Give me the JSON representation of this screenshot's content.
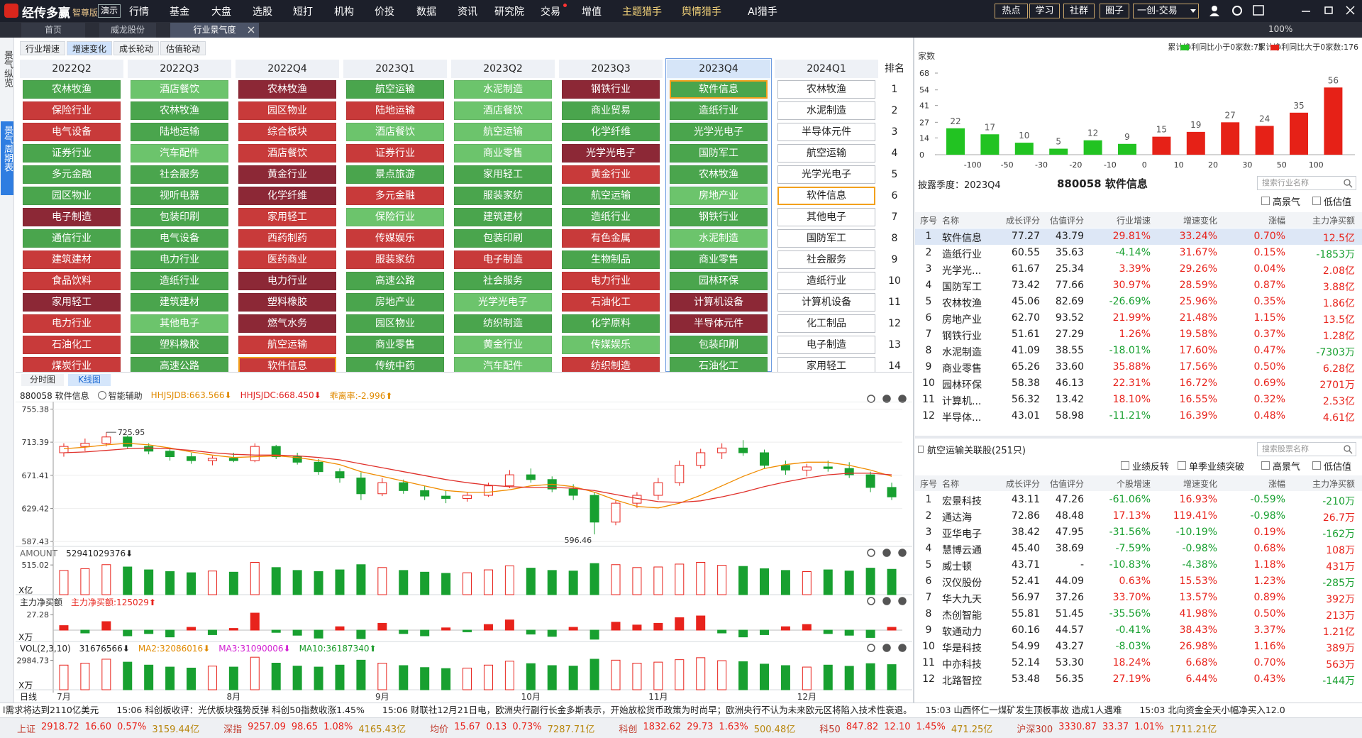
{
  "menu": {
    "logo": "经传多赢",
    "edition": "智尊版",
    "demo": "演示",
    "items": [
      "行情",
      "基金",
      "大盘",
      "选股",
      "短打",
      "机构",
      "价投",
      "数据",
      "资讯",
      "研究院",
      "交易",
      "增值",
      "主题猎手",
      "舆情猎手",
      "AI猎手"
    ],
    "right": [
      "热点",
      "学习",
      "社群",
      "圈子",
      "一创-交易"
    ],
    "zoom": "100%"
  },
  "tabs": [
    "首页",
    "威龙股份",
    "行业景气度"
  ],
  "sidebar": [
    "景气纵览",
    "景气周期表"
  ],
  "subtabs": [
    "行业增速",
    "增速变化",
    "成长轮动",
    "估值轮动"
  ],
  "active_subtab": 1,
  "grid": {
    "rank_label": "排名",
    "selected_column": 6,
    "highlight": "软件信息",
    "ranks": [
      1,
      2,
      3,
      4,
      5,
      6,
      7,
      8,
      9,
      10,
      11,
      12,
      13,
      14
    ],
    "columns": [
      {
        "quarter": "2022Q2",
        "items": [
          "农林牧渔",
          "保险行业",
          "电气设备",
          "证券行业",
          "多元金融",
          "园区物业",
          "电子制造",
          "通信行业",
          "建筑建材",
          "食品饮料",
          "家用轻工",
          "电力行业",
          "石油化工",
          "煤炭行业"
        ],
        "colors": [
          "#4aa54d",
          "#c83a3a",
          "#c83a3a",
          "#4aa54d",
          "#4aa54d",
          "#4aa54d",
          "#8c2836",
          "#4aa54d",
          "#c83a3a",
          "#c83a3a",
          "#8c2836",
          "#c83a3a",
          "#c83a3a",
          "#c83a3a"
        ]
      },
      {
        "quarter": "2022Q3",
        "items": [
          "酒店餐饮",
          "农林牧渔",
          "陆地运输",
          "汽车配件",
          "社会服务",
          "视听电器",
          "包装印刷",
          "电气设备",
          "电力行业",
          "造纸行业",
          "建筑建材",
          "其他电子",
          "塑料橡胶",
          "高速公路"
        ],
        "colors": [
          "#6cc46c",
          "#4aa54d",
          "#4aa54d",
          "#6cc46c",
          "#4aa54d",
          "#4aa54d",
          "#4aa54d",
          "#4aa54d",
          "#4aa54d",
          "#4aa54d",
          "#4aa54d",
          "#6cc46c",
          "#4aa54d",
          "#4aa54d"
        ]
      },
      {
        "quarter": "2022Q4",
        "items": [
          "农林牧渔",
          "园区物业",
          "综合板块",
          "酒店餐饮",
          "黄金行业",
          "化学纤维",
          "家用轻工",
          "西药制药",
          "医药商业",
          "电力行业",
          "塑料橡胶",
          "燃气水务",
          "航空运输",
          "软件信息"
        ],
        "colors": [
          "#8c2836",
          "#c83a3a",
          "#c83a3a",
          "#c83a3a",
          "#8c2836",
          "#8c2836",
          "#c83a3a",
          "#c83a3a",
          "#c83a3a",
          "#8c2836",
          "#8c2836",
          "#8c2836",
          "#c83a3a",
          "#c83a3a"
        ]
      },
      {
        "quarter": "2023Q1",
        "items": [
          "航空运输",
          "陆地运输",
          "酒店餐饮",
          "证券行业",
          "景点旅游",
          "多元金融",
          "保险行业",
          "传媒娱乐",
          "服装家纺",
          "高速公路",
          "房地产业",
          "园区物业",
          "商业零售",
          "传统中药"
        ],
        "colors": [
          "#4aa54d",
          "#c83a3a",
          "#6cc46c",
          "#c83a3a",
          "#4aa54d",
          "#c83a3a",
          "#6cc46c",
          "#c83a3a",
          "#c83a3a",
          "#4aa54d",
          "#4aa54d",
          "#4aa54d",
          "#4aa54d",
          "#4aa54d"
        ]
      },
      {
        "quarter": "2023Q2",
        "items": [
          "水泥制造",
          "酒店餐饮",
          "航空运输",
          "商业零售",
          "家用轻工",
          "服装家纺",
          "建筑建材",
          "包装印刷",
          "电子制造",
          "社会服务",
          "光学光电子",
          "纺织制造",
          "黄金行业",
          "汽车配件"
        ],
        "colors": [
          "#6cc46c",
          "#6cc46c",
          "#6cc46c",
          "#6cc46c",
          "#4aa54d",
          "#4aa54d",
          "#4aa54d",
          "#4aa54d",
          "#c83a3a",
          "#4aa54d",
          "#6cc46c",
          "#4aa54d",
          "#6cc46c",
          "#6cc46c"
        ]
      },
      {
        "quarter": "2023Q3",
        "items": [
          "钢铁行业",
          "商业贸易",
          "化学纤维",
          "光学光电子",
          "黄金行业",
          "航空运输",
          "造纸行业",
          "有色金属",
          "生物制品",
          "电力行业",
          "石油化工",
          "化学原料",
          "传媒娱乐",
          "纺织制造"
        ],
        "colors": [
          "#8c2836",
          "#4aa54d",
          "#4aa54d",
          "#8c2836",
          "#c83a3a",
          "#4aa54d",
          "#4aa54d",
          "#c83a3a",
          "#4aa54d",
          "#c83a3a",
          "#c83a3a",
          "#4aa54d",
          "#6cc46c",
          "#c83a3a"
        ]
      },
      {
        "quarter": "2023Q4",
        "items": [
          "软件信息",
          "造纸行业",
          "光学光电子",
          "国防军工",
          "农林牧渔",
          "房地产业",
          "钢铁行业",
          "水泥制造",
          "商业零售",
          "园林环保",
          "计算机设备",
          "半导体元件",
          "包装印刷",
          "石油化工"
        ],
        "colors": [
          "#4aa54d",
          "#4aa54d",
          "#4aa54d",
          "#4aa54d",
          "#4aa54d",
          "#6cc46c",
          "#4aa54d",
          "#6cc46c",
          "#4aa54d",
          "#4aa54d",
          "#8c2836",
          "#8c2836",
          "#4aa54d",
          "#4aa54d"
        ]
      },
      {
        "quarter": "2024Q1",
        "items": [
          "农林牧渔",
          "水泥制造",
          "半导体元件",
          "航空运输",
          "光学光电子",
          "软件信息",
          "其他电子",
          "国防军工",
          "社会服务",
          "造纸行业",
          "计算机设备",
          "化工制品",
          "电子制造",
          "家用轻工"
        ],
        "colors": [
          "#ffffff",
          "#ffffff",
          "#ffffff",
          "#ffffff",
          "#ffffff",
          "#ffffff",
          "#ffffff",
          "#ffffff",
          "#ffffff",
          "#ffffff",
          "#ffffff",
          "#ffffff",
          "#ffffff",
          "#ffffff"
        ]
      }
    ]
  },
  "kline_tabs": [
    "分时图",
    "K线图"
  ],
  "chart_data": [
    {
      "type": "histogram",
      "ylabel": "家数",
      "bins": [
        null,
        -100,
        -50,
        -30,
        -20,
        -10,
        0,
        10,
        20,
        30,
        50,
        100,
        null
      ],
      "counts": [
        22,
        17,
        10,
        5,
        12,
        9,
        15,
        19,
        27,
        24,
        35,
        56
      ],
      "colors": [
        "#22c322",
        "#22c322",
        "#22c322",
        "#22c322",
        "#22c322",
        "#22c322",
        "#e62117",
        "#e62117",
        "#e62117",
        "#e62117",
        "#e62117",
        "#e62117"
      ],
      "legend": [
        {
          "name": "累计净利同比小于0家数:75",
          "color": "#22c322"
        },
        {
          "name": "累计净利同比大于0家数:176",
          "color": "#e62117"
        }
      ],
      "ylim": [
        0,
        68
      ],
      "yticks": [
        0,
        14,
        27,
        41,
        54,
        68
      ]
    },
    {
      "type": "candlestick",
      "title": "880058 软件信息",
      "assist": "智能辅助",
      "period": "日线",
      "indicators": [
        {
          "name": "HHJSJDB:663.566⬇",
          "color": "#e08a00"
        },
        {
          "name": "HHJSJDC:668.450⬇",
          "color": "#e02020"
        },
        {
          "name": "乖离率:-2.996⬆",
          "color": "#e08a00"
        }
      ],
      "categories": [
        "7月",
        null,
        null,
        null,
        null,
        null,
        null,
        null,
        "8月",
        null,
        null,
        null,
        null,
        null,
        null,
        "9月",
        null,
        null,
        null,
        null,
        null,
        null,
        "10月",
        null,
        null,
        null,
        null,
        null,
        "11月",
        null,
        null,
        null,
        null,
        null,
        null,
        "12月",
        null,
        null,
        null,
        null
      ],
      "open": [
        700,
        708,
        712,
        720,
        708,
        702,
        695,
        690,
        693,
        690,
        708,
        695,
        688,
        676,
        668,
        648,
        662,
        652,
        645,
        642,
        646,
        658,
        672,
        666,
        654,
        646,
        612,
        636,
        646,
        662,
        684,
        700,
        706,
        700,
        684,
        678,
        682,
        680,
        672,
        656
      ],
      "high": [
        712,
        718,
        725.95,
        722,
        712,
        706,
        700,
        696,
        700,
        712,
        710,
        700,
        692,
        680,
        675,
        668,
        666,
        658,
        652,
        650,
        662,
        678,
        680,
        670,
        660,
        650,
        640,
        650,
        668,
        690,
        705,
        712,
        716,
        704,
        690,
        686,
        690,
        688,
        676,
        662
      ],
      "low": [
        695,
        702,
        708,
        705,
        698,
        690,
        686,
        684,
        688,
        688,
        692,
        685,
        672,
        662,
        640,
        645,
        648,
        640,
        636,
        638,
        644,
        655,
        662,
        650,
        640,
        596.46,
        608,
        630,
        640,
        658,
        680,
        692,
        696,
        680,
        672,
        670,
        676,
        668,
        650,
        640
      ],
      "close": [
        708,
        712,
        720,
        708,
        702,
        695,
        690,
        693,
        690,
        708,
        695,
        688,
        676,
        668,
        648,
        662,
        652,
        645,
        642,
        646,
        658,
        672,
        666,
        654,
        646,
        612,
        636,
        646,
        662,
        684,
        700,
        706,
        700,
        684,
        678,
        682,
        680,
        672,
        656,
        644
      ],
      "series": [
        {
          "color": "#f08c00",
          "values": [
            705,
            707,
            710,
            712,
            710,
            706,
            701,
            697,
            694,
            695,
            696,
            694,
            690,
            685,
            676,
            670,
            664,
            658,
            652,
            650,
            650,
            653,
            658,
            660,
            657,
            650,
            640,
            632,
            630,
            636,
            646,
            658,
            670,
            680,
            685,
            688,
            688,
            684,
            678,
            670
          ]
        },
        {
          "color": "#e0312b",
          "values": [
            700,
            701,
            703,
            705,
            706,
            705,
            703,
            700,
            698,
            697,
            697,
            696,
            694,
            691,
            686,
            681,
            676,
            671,
            666,
            662,
            659,
            657,
            656,
            656,
            655,
            652,
            647,
            642,
            638,
            637,
            639,
            644,
            650,
            657,
            663,
            668,
            672,
            674,
            674,
            672
          ]
        }
      ],
      "ylim": [
        583,
        763
      ],
      "yticks": [
        587.43,
        629.42,
        671.41,
        713.39,
        755.38
      ]
    },
    {
      "type": "bar",
      "title": "AMOUNT",
      "readout": "52941029376⬇",
      "unit": "X亿",
      "values": [
        420,
        450,
        520,
        480,
        430,
        400,
        380,
        410,
        390,
        560,
        470,
        420,
        400,
        430,
        520,
        470,
        420,
        390,
        370,
        380,
        430,
        500,
        460,
        420,
        410,
        540,
        520,
        470,
        480,
        530,
        560,
        510,
        490,
        450,
        420,
        400,
        430,
        410,
        460,
        440
      ],
      "ylim": [
        0,
        640
      ],
      "yticks": [
        515.02
      ]
    },
    {
      "type": "bar",
      "title": "主力净买额",
      "readout": "主力净买额:125029⬆",
      "unit": "X万",
      "values": [
        8,
        -5,
        15,
        -10,
        -6,
        -12,
        5,
        -8,
        3,
        30,
        -4,
        -9,
        -14,
        6,
        -15,
        12,
        -6,
        -10,
        4,
        -3,
        10,
        18,
        -7,
        -11,
        5,
        -16,
        14,
        9,
        12,
        22,
        25,
        -5,
        -12,
        -8,
        6,
        10,
        -6,
        -9,
        -13,
        5
      ],
      "ylim": [
        -20,
        40
      ],
      "yticks": [
        27.28
      ]
    },
    {
      "type": "bar",
      "title": "VOL(2,3,10)",
      "readout": [
        {
          "name": "31676566⬇",
          "color": "#222222"
        },
        {
          "name": "MA2:32086016⬇",
          "color": "#e08a00"
        },
        {
          "name": "MA3:31090006⬇",
          "color": "#d21fd2"
        },
        {
          "name": "MA10:36187340⬆",
          "color": "#1a9a2a"
        }
      ],
      "unit": "X万",
      "values": [
        2500,
        2700,
        3100,
        2800,
        2500,
        2300,
        2200,
        2400,
        2300,
        3300,
        2700,
        2400,
        2300,
        2500,
        3000,
        2700,
        2450,
        2250,
        2150,
        2200,
        2500,
        2900,
        2650,
        2450,
        2400,
        3100,
        3000,
        2700,
        2800,
        3050,
        3250,
        2950,
        2850,
        2600,
        2450,
        2300,
        2500,
        2380,
        2650,
        2550
      ],
      "ylim": [
        0,
        3600
      ],
      "yticks": [
        2984.73
      ]
    }
  ],
  "sector_table": {
    "quarter_label": "披露季度：2023Q4",
    "title": "880058 软件信息",
    "search": "搜索行业名称",
    "filters": [
      "高景气",
      "低估值"
    ],
    "headers": [
      "序号",
      "名称",
      "成长评分",
      "估值评分",
      "行业增速",
      "增速变化",
      "涨幅",
      "主力净买额"
    ],
    "rows": [
      [
        "1",
        "软件信息",
        "77.27",
        "43.79",
        "29.81%",
        "33.24%",
        "0.70%",
        "12.5亿"
      ],
      [
        "2",
        "造纸行业",
        "60.55",
        "35.63",
        "-4.14%",
        "31.67%",
        "0.15%",
        "-1853万"
      ],
      [
        "3",
        "光学光...",
        "61.67",
        "25.34",
        "3.39%",
        "29.26%",
        "0.04%",
        "2.08亿"
      ],
      [
        "4",
        "国防军工",
        "73.42",
        "77.66",
        "30.97%",
        "28.59%",
        "0.87%",
        "3.88亿"
      ],
      [
        "5",
        "农林牧渔",
        "45.06",
        "82.69",
        "-26.69%",
        "25.96%",
        "0.35%",
        "1.86亿"
      ],
      [
        "6",
        "房地产业",
        "62.70",
        "93.52",
        "21.99%",
        "21.48%",
        "1.15%",
        "13.5亿"
      ],
      [
        "7",
        "钢铁行业",
        "51.61",
        "27.29",
        "1.26%",
        "19.58%",
        "0.37%",
        "1.28亿"
      ],
      [
        "8",
        "水泥制造",
        "41.09",
        "38.55",
        "-18.01%",
        "17.60%",
        "0.47%",
        "-7303万"
      ],
      [
        "9",
        "商业零售",
        "65.26",
        "33.60",
        "35.88%",
        "17.56%",
        "0.50%",
        "6.28亿"
      ],
      [
        "10",
        "园林环保",
        "58.38",
        "46.13",
        "22.31%",
        "16.72%",
        "0.69%",
        "2701万"
      ],
      [
        "11",
        "计算机...",
        "56.32",
        "13.42",
        "18.10%",
        "16.55%",
        "0.32%",
        "2.53亿"
      ],
      [
        "12",
        "半导体...",
        "43.01",
        "58.98",
        "-11.21%",
        "16.39%",
        "0.48%",
        "4.61亿"
      ]
    ]
  },
  "stock_table": {
    "title": "航空运输关联股(251只)",
    "search": "搜索股票名称",
    "filters": [
      "业绩反转",
      "单季业绩突破",
      "高景气",
      "低估值"
    ],
    "headers": [
      "序号",
      "名称",
      "成长评分",
      "估值评分",
      "个股增速",
      "增速变化",
      "涨幅",
      "主力净买额"
    ],
    "rows": [
      [
        "1",
        "宏景科技",
        "43.11",
        "47.26",
        "-61.06%",
        "16.93%",
        "-0.59%",
        "-210万"
      ],
      [
        "2",
        "通达海",
        "72.86",
        "48.48",
        "17.13%",
        "119.41%",
        "-0.98%",
        "26.7万"
      ],
      [
        "3",
        "亚华电子",
        "38.42",
        "47.95",
        "-31.56%",
        "-10.19%",
        "0.19%",
        "-162万"
      ],
      [
        "4",
        "慧博云通",
        "45.40",
        "38.69",
        "-7.59%",
        "-0.98%",
        "0.68%",
        "108万"
      ],
      [
        "5",
        "威士顿",
        "43.71",
        "-",
        "-10.83%",
        "-4.38%",
        "1.18%",
        "431万"
      ],
      [
        "6",
        "汉仪股份",
        "52.41",
        "44.09",
        "0.63%",
        "15.53%",
        "1.23%",
        "-285万"
      ],
      [
        "7",
        "华大九天",
        "56.97",
        "37.26",
        "33.70%",
        "13.57%",
        "0.89%",
        "392万"
      ],
      [
        "8",
        "杰创智能",
        "55.81",
        "51.45",
        "-35.56%",
        "41.98%",
        "0.50%",
        "213万"
      ],
      [
        "9",
        "软通动力",
        "60.16",
        "44.57",
        "-0.41%",
        "38.43%",
        "3.37%",
        "1.21亿"
      ],
      [
        "10",
        "华是科技",
        "54.99",
        "43.27",
        "-8.03%",
        "26.98%",
        "1.16%",
        "389万"
      ],
      [
        "11",
        "中亦科技",
        "52.14",
        "53.30",
        "18.24%",
        "6.68%",
        "0.70%",
        "563万"
      ],
      [
        "12",
        "北路智控",
        "53.48",
        "56.35",
        "27.19%",
        "6.44%",
        "0.43%",
        "-144万"
      ]
    ]
  },
  "ticker": "l需求将达到2110亿美元　　15:06 科创板收评：光伏板块强势反弹 科创50指数收涨1.45%　　15:06 财联社12月21日电，欧洲央行副行长金多斯表示，开始放松货币政策为时尚早；欧洲央行不认为未来欧元区将陷入技术性衰退。　　15:03 山西怀仁一煤矿发生顶板事故 造成1人遇难　　15:03 北向资金全天小幅净买入12.0",
  "indices": [
    {
      "name": "上证",
      "values": [
        "2918.72",
        "16.60",
        "0.57%",
        "3159.44亿"
      ]
    },
    {
      "name": "深指",
      "values": [
        "9257.09",
        "98.65",
        "1.08%",
        "4165.43亿"
      ]
    },
    {
      "name": "均价",
      "values": [
        "15.67",
        "0.13",
        "0.73%",
        "7287.71亿"
      ]
    },
    {
      "name": "科创",
      "values": [
        "1832.62",
        "29.73",
        "1.63%",
        "500.48亿"
      ]
    },
    {
      "name": "科50",
      "values": [
        "847.82",
        "12.10",
        "1.45%",
        "471.25亿"
      ]
    },
    {
      "name": "沪深300",
      "values": [
        "3330.87",
        "33.37",
        "1.01%",
        "1711.21亿"
      ]
    }
  ]
}
